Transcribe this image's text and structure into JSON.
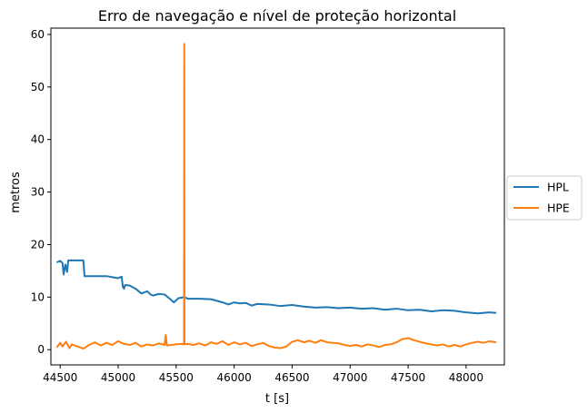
{
  "chart_data": {
    "type": "line",
    "title": "Erro de navegação e nível de proteção horizontal",
    "xlabel": "t [s]",
    "ylabel": "metros",
    "xlim": [
      44420,
      48330
    ],
    "ylim": [
      -2.9,
      61.2
    ],
    "xticks": [
      44500,
      45000,
      45500,
      46000,
      46500,
      47000,
      47500,
      48000
    ],
    "yticks": [
      0,
      10,
      20,
      30,
      40,
      50,
      60
    ],
    "grid": false,
    "legend_position": "right-outside",
    "series": [
      {
        "name": "HPL",
        "color": "#1f77b4",
        "points": [
          [
            44470,
            16.6
          ],
          [
            44500,
            16.9
          ],
          [
            44520,
            16.5
          ],
          [
            44530,
            14.3
          ],
          [
            44545,
            16.2
          ],
          [
            44560,
            14.8
          ],
          [
            44570,
            17.0
          ],
          [
            44600,
            17.0
          ],
          [
            44650,
            17.0
          ],
          [
            44700,
            17.0
          ],
          [
            44710,
            14.0
          ],
          [
            44800,
            14.0
          ],
          [
            44900,
            14.0
          ],
          [
            44950,
            13.8
          ],
          [
            45000,
            13.6
          ],
          [
            45030,
            13.9
          ],
          [
            45040,
            12.0
          ],
          [
            45050,
            11.6
          ],
          [
            45060,
            12.3
          ],
          [
            45100,
            12.2
          ],
          [
            45150,
            11.6
          ],
          [
            45200,
            10.7
          ],
          [
            45250,
            11.1
          ],
          [
            45280,
            10.5
          ],
          [
            45300,
            10.3
          ],
          [
            45350,
            10.6
          ],
          [
            45400,
            10.5
          ],
          [
            45450,
            9.6
          ],
          [
            45480,
            9.0
          ],
          [
            45520,
            9.8
          ],
          [
            45570,
            10.0
          ],
          [
            45600,
            9.7
          ],
          [
            45700,
            9.7
          ],
          [
            45800,
            9.6
          ],
          [
            45850,
            9.3
          ],
          [
            45900,
            9.0
          ],
          [
            45950,
            8.6
          ],
          [
            46000,
            9.0
          ],
          [
            46050,
            8.8
          ],
          [
            46100,
            8.9
          ],
          [
            46150,
            8.4
          ],
          [
            46200,
            8.7
          ],
          [
            46300,
            8.6
          ],
          [
            46400,
            8.3
          ],
          [
            46500,
            8.5
          ],
          [
            46600,
            8.2
          ],
          [
            46700,
            8.0
          ],
          [
            46800,
            8.1
          ],
          [
            46900,
            7.9
          ],
          [
            47000,
            8.0
          ],
          [
            47100,
            7.8
          ],
          [
            47200,
            7.9
          ],
          [
            47300,
            7.6
          ],
          [
            47400,
            7.8
          ],
          [
            47500,
            7.5
          ],
          [
            47600,
            7.6
          ],
          [
            47700,
            7.3
          ],
          [
            47800,
            7.5
          ],
          [
            47900,
            7.4
          ],
          [
            48000,
            7.1
          ],
          [
            48100,
            6.9
          ],
          [
            48200,
            7.1
          ],
          [
            48260,
            7.0
          ]
        ]
      },
      {
        "name": "HPE",
        "color": "#ff7f0e",
        "points": [
          [
            44470,
            0.4
          ],
          [
            44500,
            1.3
          ],
          [
            44520,
            0.6
          ],
          [
            44550,
            1.5
          ],
          [
            44580,
            0.3
          ],
          [
            44600,
            1.0
          ],
          [
            44650,
            0.6
          ],
          [
            44700,
            0.2
          ],
          [
            44750,
            0.9
          ],
          [
            44800,
            1.4
          ],
          [
            44850,
            0.8
          ],
          [
            44900,
            1.3
          ],
          [
            44950,
            0.9
          ],
          [
            45000,
            1.6
          ],
          [
            45050,
            1.1
          ],
          [
            45100,
            0.9
          ],
          [
            45150,
            1.3
          ],
          [
            45200,
            0.6
          ],
          [
            45250,
            1.0
          ],
          [
            45300,
            0.8
          ],
          [
            45350,
            1.2
          ],
          [
            45400,
            0.9
          ],
          [
            45410,
            2.8
          ],
          [
            45420,
            0.8
          ],
          [
            45500,
            1.0
          ],
          [
            45550,
            1.1
          ],
          [
            45568,
            1.0
          ],
          [
            45570,
            58.2
          ],
          [
            45572,
            1.0
          ],
          [
            45600,
            1.1
          ],
          [
            45650,
            0.9
          ],
          [
            45700,
            1.2
          ],
          [
            45750,
            0.8
          ],
          [
            45800,
            1.4
          ],
          [
            45850,
            1.1
          ],
          [
            45900,
            1.6
          ],
          [
            45950,
            0.9
          ],
          [
            46000,
            1.4
          ],
          [
            46050,
            1.0
          ],
          [
            46100,
            1.3
          ],
          [
            46150,
            0.7
          ],
          [
            46200,
            1.0
          ],
          [
            46250,
            1.3
          ],
          [
            46300,
            0.7
          ],
          [
            46350,
            0.4
          ],
          [
            46400,
            0.3
          ],
          [
            46450,
            0.6
          ],
          [
            46500,
            1.5
          ],
          [
            46550,
            1.8
          ],
          [
            46600,
            1.4
          ],
          [
            46650,
            1.7
          ],
          [
            46700,
            1.3
          ],
          [
            46750,
            1.8
          ],
          [
            46800,
            1.4
          ],
          [
            46850,
            1.3
          ],
          [
            46900,
            1.2
          ],
          [
            46950,
            0.9
          ],
          [
            47000,
            0.7
          ],
          [
            47050,
            0.9
          ],
          [
            47100,
            0.6
          ],
          [
            47150,
            1.0
          ],
          [
            47200,
            0.8
          ],
          [
            47250,
            0.5
          ],
          [
            47300,
            0.9
          ],
          [
            47350,
            1.0
          ],
          [
            47400,
            1.4
          ],
          [
            47450,
            2.0
          ],
          [
            47500,
            2.2
          ],
          [
            47550,
            1.8
          ],
          [
            47600,
            1.5
          ],
          [
            47650,
            1.2
          ],
          [
            47700,
            1.0
          ],
          [
            47750,
            0.8
          ],
          [
            47800,
            1.0
          ],
          [
            47850,
            0.6
          ],
          [
            47900,
            0.9
          ],
          [
            47950,
            0.6
          ],
          [
            48000,
            1.0
          ],
          [
            48050,
            1.3
          ],
          [
            48100,
            1.5
          ],
          [
            48150,
            1.3
          ],
          [
            48200,
            1.6
          ],
          [
            48260,
            1.4
          ]
        ]
      }
    ]
  }
}
